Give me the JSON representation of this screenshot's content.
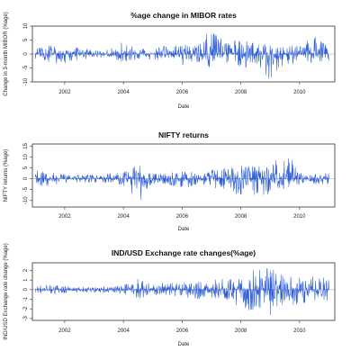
{
  "chart_data": [
    {
      "type": "line",
      "title": "%age change in MIBOR rates",
      "xlabel": "Date",
      "ylabel": "Change in 3-month MIBOR (%age)",
      "x_ticks": [
        "2002",
        "2004",
        "2006",
        "2008",
        "2010"
      ],
      "y_ticks": [
        "-10",
        "-5",
        "0",
        "5",
        "10"
      ],
      "xlim": [
        2000.9,
        2011.2
      ],
      "ylim": [
        -10,
        10
      ],
      "color": "#2b5bd7",
      "series": [
        {
          "x": [
            2001.0,
            2001.5,
            2002.0,
            2002.5,
            2003.0,
            2003.5,
            2004.0,
            2004.5,
            2005.0,
            2005.5,
            2006.0,
            2006.5,
            2007.0,
            2007.5,
            2008.0,
            2008.5,
            2009.0,
            2009.5,
            2010.0,
            2010.5,
            2011.0
          ],
          "y_upper": [
            2.0,
            3.5,
            2.0,
            2.5,
            1.5,
            1.5,
            4.5,
            2.0,
            2.0,
            3.0,
            3.5,
            3.0,
            9.5,
            4.0,
            6.0,
            3.5,
            4.0,
            3.0,
            3.5,
            6.5,
            3.0
          ],
          "y_lower": [
            -2.0,
            -3.0,
            -4.0,
            -2.0,
            -1.5,
            -1.5,
            -3.0,
            -2.0,
            -2.0,
            -3.0,
            -4.0,
            -3.0,
            -5.0,
            -4.0,
            -6.0,
            -5.0,
            -10.0,
            -4.0,
            -3.5,
            -3.0,
            -3.0
          ]
        }
      ]
    },
    {
      "type": "line",
      "title": "NIFTY returns",
      "xlabel": "Date",
      "ylabel": "NIFTY returns (%age)",
      "x_ticks": [
        "2002",
        "2004",
        "2006",
        "2008",
        "2010"
      ],
      "y_ticks": [
        "-10",
        "-5",
        "0",
        "5",
        "10",
        "15"
      ],
      "xlim": [
        2000.9,
        2011.2
      ],
      "ylim": [
        -13,
        16
      ],
      "color": "#2b5bd7",
      "series": [
        {
          "x": [
            2001.0,
            2001.5,
            2002.0,
            2002.5,
            2003.0,
            2003.5,
            2004.0,
            2004.5,
            2005.0,
            2005.5,
            2006.0,
            2006.5,
            2007.0,
            2007.5,
            2008.0,
            2008.5,
            2009.0,
            2009.5,
            2010.0,
            2010.5,
            2011.0
          ],
          "y_upper": [
            4.0,
            3.0,
            2.5,
            2.0,
            2.0,
            2.5,
            3.0,
            7.0,
            2.5,
            2.5,
            4.0,
            3.0,
            4.0,
            5.0,
            6.5,
            6.0,
            6.0,
            16.0,
            3.0,
            2.5,
            2.5
          ],
          "y_lower": [
            -5.0,
            -3.0,
            -2.5,
            -2.0,
            -2.0,
            -2.0,
            -3.0,
            -12.0,
            -2.5,
            -2.5,
            -5.0,
            -3.0,
            -4.0,
            -6.0,
            -9.0,
            -8.0,
            -7.0,
            -5.0,
            -3.0,
            -2.5,
            -2.5
          ]
        }
      ]
    },
    {
      "type": "line",
      "title": "IND/USD Exchange rate changes(%age)",
      "xlabel": "Date",
      "ylabel": "IND/USD Exchange rate change (%age)",
      "x_ticks": [
        "2002",
        "2004",
        "2006",
        "2008",
        "2010"
      ],
      "y_ticks": [
        "-3",
        "-2",
        "-1",
        "0",
        "1",
        "2"
      ],
      "xlim": [
        2000.9,
        2011.2
      ],
      "ylim": [
        -3.2,
        2.8
      ],
      "color": "#2b5bd7",
      "series": [
        {
          "x": [
            2001.0,
            2001.5,
            2002.0,
            2002.5,
            2003.0,
            2003.5,
            2004.0,
            2004.5,
            2005.0,
            2005.5,
            2006.0,
            2006.5,
            2007.0,
            2007.5,
            2008.0,
            2008.5,
            2009.0,
            2009.5,
            2010.0,
            2010.5,
            2011.0
          ],
          "y_upper": [
            0.3,
            0.8,
            0.4,
            0.3,
            0.3,
            0.3,
            0.5,
            1.2,
            0.6,
            0.8,
            0.8,
            0.9,
            1.0,
            1.2,
            1.5,
            2.2,
            2.5,
            1.8,
            1.5,
            1.5,
            1.2
          ],
          "y_lower": [
            -0.3,
            -0.5,
            -0.4,
            -0.3,
            -0.3,
            -0.3,
            -0.5,
            -1.0,
            -0.6,
            -0.8,
            -0.8,
            -1.0,
            -1.2,
            -1.2,
            -1.8,
            -2.5,
            -2.8,
            -2.0,
            -1.5,
            -1.2,
            -1.2
          ]
        }
      ]
    }
  ]
}
